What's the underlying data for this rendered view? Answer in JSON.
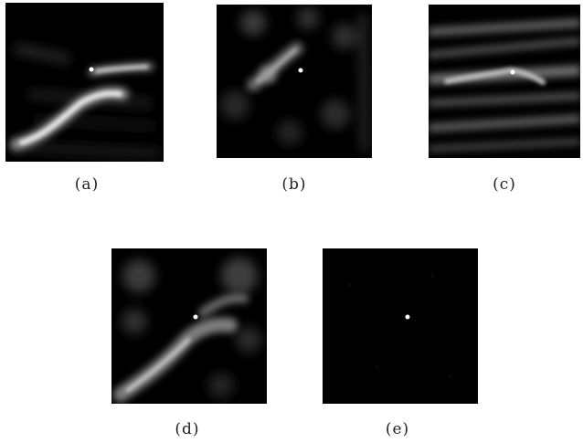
{
  "figure": {
    "panels": [
      {
        "id": "a",
        "caption": "(a)"
      },
      {
        "id": "b",
        "caption": "(b)"
      },
      {
        "id": "c",
        "caption": "(c)"
      },
      {
        "id": "d",
        "caption": "(d)"
      },
      {
        "id": "e",
        "caption": "(e)"
      }
    ]
  }
}
